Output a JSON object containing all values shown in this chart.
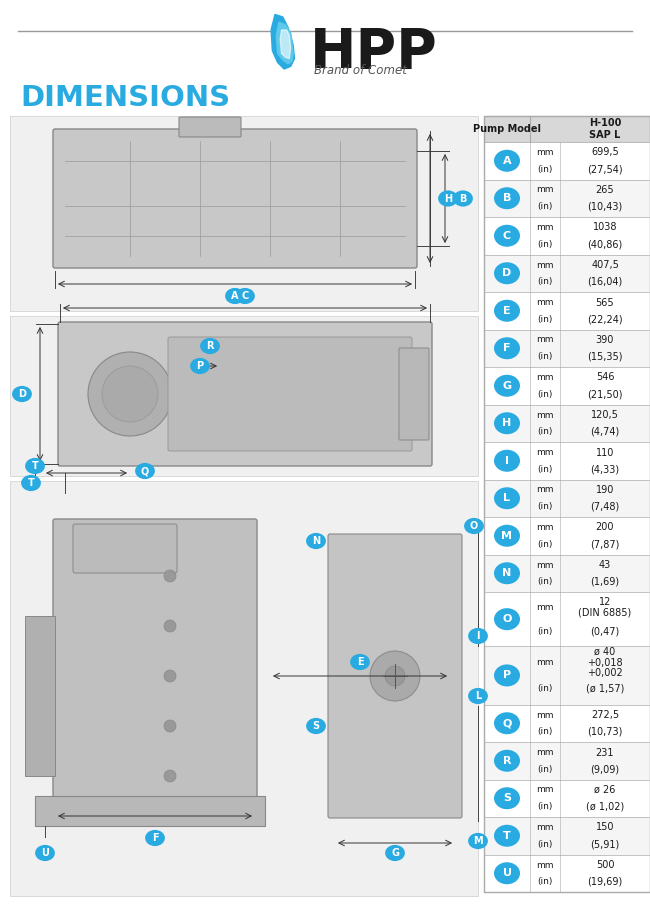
{
  "title": "DIMENSIONS",
  "table_header_col1": "Pump Model",
  "table_header_col2": "H-100\nSAP L",
  "rows": [
    {
      "label": "A",
      "mm": "699,5",
      "in": "(27,54)",
      "tall": 1.0
    },
    {
      "label": "B",
      "mm": "265",
      "in": "(10,43)",
      "tall": 1.0
    },
    {
      "label": "C",
      "mm": "1038",
      "in": "(40,86)",
      "tall": 1.0
    },
    {
      "label": "D",
      "mm": "407,5",
      "in": "(16,04)",
      "tall": 1.0
    },
    {
      "label": "E",
      "mm": "565",
      "in": "(22,24)",
      "tall": 1.0
    },
    {
      "label": "F",
      "mm": "390",
      "in": "(15,35)",
      "tall": 1.0
    },
    {
      "label": "G",
      "mm": "546",
      "in": "(21,50)",
      "tall": 1.0
    },
    {
      "label": "H",
      "mm": "120,5",
      "in": "(4,74)",
      "tall": 1.0
    },
    {
      "label": "I",
      "mm": "110",
      "in": "(4,33)",
      "tall": 1.0
    },
    {
      "label": "L",
      "mm": "190",
      "in": "(7,48)",
      "tall": 1.0
    },
    {
      "label": "M",
      "mm": "200",
      "in": "(7,87)",
      "tall": 1.0
    },
    {
      "label": "N",
      "mm": "43",
      "in": "(1,69)",
      "tall": 1.0
    },
    {
      "label": "O",
      "mm": "12\n(DIN 6885)",
      "in": "(0,47)",
      "tall": 1.45
    },
    {
      "label": "P",
      "mm": "ø 40\n+0,018\n+0,002",
      "in": "(ø 1,57)",
      "tall": 1.55
    },
    {
      "label": "Q",
      "mm": "272,5",
      "in": "(10,73)",
      "tall": 1.0
    },
    {
      "label": "R",
      "mm": "231",
      "in": "(9,09)",
      "tall": 1.0
    },
    {
      "label": "S",
      "mm": "ø 26",
      "in": "(ø 1,02)",
      "tall": 1.0
    },
    {
      "label": "T",
      "mm": "150",
      "in": "(5,91)",
      "tall": 1.0
    },
    {
      "label": "U",
      "mm": "500",
      "in": "(19,69)",
      "tall": 1.0
    }
  ],
  "circle_color": "#29ABE2",
  "table_header_bg": "#D8D8D8",
  "table_border": "#AAAAAA",
  "row_bg_even": "#FFFFFF",
  "row_bg_odd": "#F5F5F5",
  "title_color": "#29ABE2",
  "body_bg": "#FFFFFF",
  "text_dark": "#1a1a1a",
  "sep_color": "#999999",
  "logo_hpp_color": "#1a1a1a",
  "logo_blue": "#29ABE2",
  "drawing_bg": "#E8E8E8",
  "drawing_border": "#BBBBBB"
}
